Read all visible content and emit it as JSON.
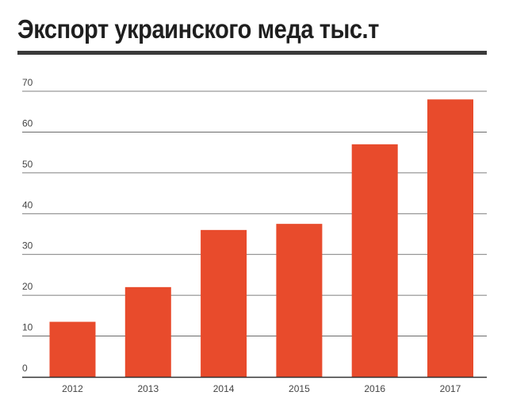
{
  "chart_data": {
    "type": "bar",
    "title": "Экспорт украинского меда тыс.т",
    "categories": [
      "2012",
      "2013",
      "2014",
      "2015",
      "2016",
      "2017"
    ],
    "values": [
      13.5,
      22,
      36,
      37.5,
      57,
      68
    ],
    "ylim": [
      0,
      70
    ],
    "yticks": [
      0,
      10,
      20,
      30,
      40,
      50,
      60,
      70
    ],
    "grid": true,
    "legend": "none",
    "colors": {
      "bar": "#e84b2c",
      "grid": "#555555",
      "title_rule": "#3a3a3a"
    }
  }
}
